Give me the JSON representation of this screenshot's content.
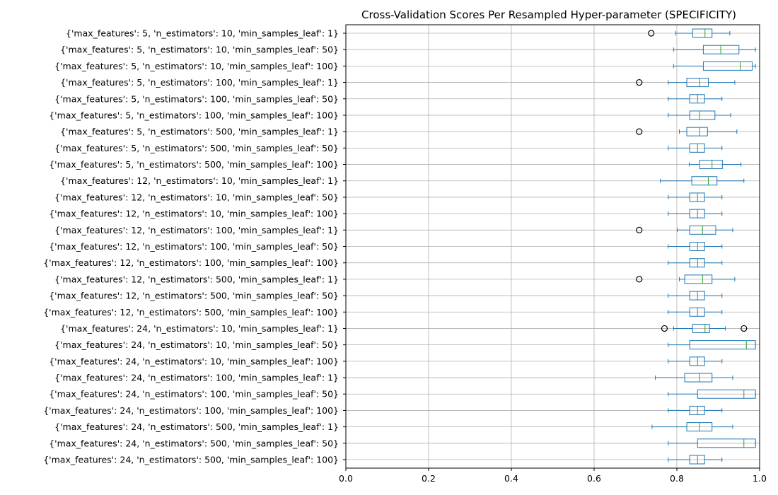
{
  "chart_data": {
    "type": "boxplot",
    "orientation": "horizontal",
    "title": "Cross-Validation Scores Per Resampled Hyper-parameter (SPECIFICITY)",
    "xlim": [
      0.0,
      1.0
    ],
    "xticks": [
      "0.0",
      "0.2",
      "0.4",
      "0.6",
      "0.8",
      "1.0"
    ],
    "xtick_values": [
      0.0,
      0.2,
      0.4,
      0.6,
      0.8,
      1.0
    ],
    "grid": true,
    "highlight_color": "#ff0000",
    "box_color": "#1f77b4",
    "median_color": "#2ca02c",
    "categories": [
      {
        "label": "{'max_features': 5, 'n_estimators': 10, 'min_samples_leaf': 1}",
        "whislo": 0.797,
        "q1": 0.838,
        "med": 0.868,
        "q3": 0.885,
        "whishi": 0.928,
        "fliers": [
          0.738
        ],
        "highlight": false
      },
      {
        "label": "{'max_features': 5, 'n_estimators': 10, 'min_samples_leaf': 50}",
        "whislo": 0.792,
        "q1": 0.864,
        "med": 0.906,
        "q3": 0.95,
        "whishi": 0.99,
        "fliers": [],
        "highlight": false
      },
      {
        "label": "{'max_features': 5, 'n_estimators': 10, 'min_samples_leaf': 100}",
        "whislo": 0.792,
        "q1": 0.864,
        "med": 0.953,
        "q3": 0.982,
        "whishi": 0.99,
        "fliers": [],
        "highlight": true
      },
      {
        "label": "{'max_features': 5, 'n_estimators': 100, 'min_samples_leaf': 1}",
        "whislo": 0.779,
        "q1": 0.824,
        "med": 0.855,
        "q3": 0.876,
        "whishi": 0.94,
        "fliers": [
          0.709
        ],
        "highlight": false
      },
      {
        "label": "{'max_features': 5, 'n_estimators': 100, 'min_samples_leaf': 50}",
        "whislo": 0.779,
        "q1": 0.831,
        "med": 0.85,
        "q3": 0.867,
        "whishi": 0.909,
        "fliers": [],
        "highlight": false
      },
      {
        "label": "{'max_features': 5, 'n_estimators': 100, 'min_samples_leaf': 100}",
        "whislo": 0.779,
        "q1": 0.831,
        "med": 0.855,
        "q3": 0.892,
        "whishi": 0.93,
        "fliers": [],
        "highlight": false
      },
      {
        "label": "{'max_features': 5, 'n_estimators': 500, 'min_samples_leaf': 1}",
        "whislo": 0.806,
        "q1": 0.824,
        "med": 0.855,
        "q3": 0.874,
        "whishi": 0.945,
        "fliers": [
          0.709
        ],
        "highlight": false
      },
      {
        "label": "{'max_features': 5, 'n_estimators': 500, 'min_samples_leaf': 50}",
        "whislo": 0.779,
        "q1": 0.831,
        "med": 0.85,
        "q3": 0.867,
        "whishi": 0.909,
        "fliers": [],
        "highlight": false
      },
      {
        "label": "{'max_features': 5, 'n_estimators': 500, 'min_samples_leaf': 100}",
        "whislo": 0.83,
        "q1": 0.855,
        "med": 0.885,
        "q3": 0.91,
        "whishi": 0.955,
        "fliers": [],
        "highlight": false
      },
      {
        "label": "{'max_features': 12, 'n_estimators': 10, 'min_samples_leaf': 1}",
        "whislo": 0.76,
        "q1": 0.836,
        "med": 0.876,
        "q3": 0.897,
        "whishi": 0.962,
        "fliers": [],
        "highlight": false
      },
      {
        "label": "{'max_features': 12, 'n_estimators': 10, 'min_samples_leaf': 50}",
        "whislo": 0.779,
        "q1": 0.831,
        "med": 0.85,
        "q3": 0.867,
        "whishi": 0.909,
        "fliers": [],
        "highlight": false
      },
      {
        "label": "{'max_features': 12, 'n_estimators': 10, 'min_samples_leaf': 100}",
        "whislo": 0.779,
        "q1": 0.831,
        "med": 0.85,
        "q3": 0.867,
        "whishi": 0.909,
        "fliers": [],
        "highlight": false
      },
      {
        "label": "{'max_features': 12, 'n_estimators': 100, 'min_samples_leaf': 1}",
        "whislo": 0.801,
        "q1": 0.831,
        "med": 0.862,
        "q3": 0.894,
        "whishi": 0.935,
        "fliers": [
          0.709
        ],
        "highlight": false
      },
      {
        "label": "{'max_features': 12, 'n_estimators': 100, 'min_samples_leaf': 50}",
        "whislo": 0.779,
        "q1": 0.831,
        "med": 0.85,
        "q3": 0.867,
        "whishi": 0.909,
        "fliers": [],
        "highlight": false
      },
      {
        "label": "{'max_features': 12, 'n_estimators': 100, 'min_samples_leaf': 100}",
        "whislo": 0.779,
        "q1": 0.831,
        "med": 0.85,
        "q3": 0.867,
        "whishi": 0.909,
        "fliers": [],
        "highlight": false
      },
      {
        "label": "{'max_features': 12, 'n_estimators': 500, 'min_samples_leaf': 1}",
        "whislo": 0.806,
        "q1": 0.819,
        "med": 0.862,
        "q3": 0.885,
        "whishi": 0.94,
        "fliers": [
          0.709
        ],
        "highlight": false
      },
      {
        "label": "{'max_features': 12, 'n_estimators': 500, 'min_samples_leaf': 50}",
        "whislo": 0.779,
        "q1": 0.831,
        "med": 0.85,
        "q3": 0.867,
        "whishi": 0.909,
        "fliers": [],
        "highlight": false
      },
      {
        "label": "{'max_features': 12, 'n_estimators': 500, 'min_samples_leaf': 100}",
        "whislo": 0.779,
        "q1": 0.831,
        "med": 0.85,
        "q3": 0.867,
        "whishi": 0.909,
        "fliers": [],
        "highlight": false
      },
      {
        "label": "{'max_features': 24, 'n_estimators': 10, 'min_samples_leaf': 1}",
        "whislo": 0.792,
        "q1": 0.838,
        "med": 0.868,
        "q3": 0.879,
        "whishi": 0.917,
        "fliers": [
          0.77,
          0.962
        ],
        "highlight": false
      },
      {
        "label": "{'max_features': 24, 'n_estimators': 10, 'min_samples_leaf': 50}",
        "whislo": 0.779,
        "q1": 0.831,
        "med": 0.968,
        "q3": 0.99,
        "whishi": 0.99,
        "fliers": [],
        "highlight": false
      },
      {
        "label": "{'max_features': 24, 'n_estimators': 10, 'min_samples_leaf': 100}",
        "whislo": 0.779,
        "q1": 0.831,
        "med": 0.85,
        "q3": 0.867,
        "whishi": 0.909,
        "fliers": [],
        "highlight": false
      },
      {
        "label": "{'max_features': 24, 'n_estimators': 100, 'min_samples_leaf': 1}",
        "whislo": 0.748,
        "q1": 0.819,
        "med": 0.855,
        "q3": 0.885,
        "whishi": 0.935,
        "fliers": [],
        "highlight": false
      },
      {
        "label": "{'max_features': 24, 'n_estimators': 100, 'min_samples_leaf': 50}",
        "whislo": 0.779,
        "q1": 0.85,
        "med": 0.962,
        "q3": 0.99,
        "whishi": 0.99,
        "fliers": [],
        "highlight": false
      },
      {
        "label": "{'max_features': 24, 'n_estimators': 100, 'min_samples_leaf': 100}",
        "whislo": 0.779,
        "q1": 0.831,
        "med": 0.85,
        "q3": 0.867,
        "whishi": 0.909,
        "fliers": [],
        "highlight": false
      },
      {
        "label": "{'max_features': 24, 'n_estimators': 500, 'min_samples_leaf': 1}",
        "whislo": 0.74,
        "q1": 0.824,
        "med": 0.855,
        "q3": 0.885,
        "whishi": 0.935,
        "fliers": [],
        "highlight": false
      },
      {
        "label": "{'max_features': 24, 'n_estimators': 500, 'min_samples_leaf': 50}",
        "whislo": 0.779,
        "q1": 0.85,
        "med": 0.962,
        "q3": 0.99,
        "whishi": 0.99,
        "fliers": [],
        "highlight": false
      },
      {
        "label": "{'max_features': 24, 'n_estimators': 500, 'min_samples_leaf': 100}",
        "whislo": 0.779,
        "q1": 0.831,
        "med": 0.85,
        "q3": 0.867,
        "whishi": 0.909,
        "fliers": [],
        "highlight": false
      }
    ]
  }
}
